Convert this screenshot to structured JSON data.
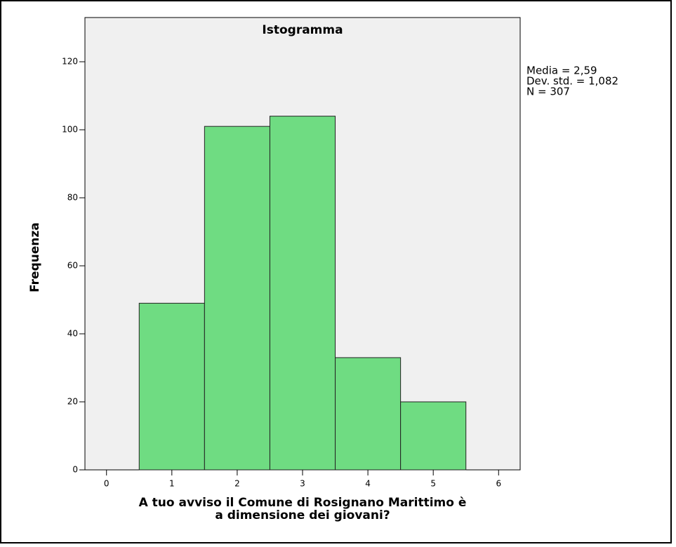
{
  "chart_data": {
    "type": "histogram",
    "title": "Istogramma",
    "xlabel": [
      "A tuo avviso il Comune di Rosignano Marittimo è",
      "a dimensione dei giovani?"
    ],
    "ylabel": "Frequenza",
    "bins": [
      0.5,
      1.5,
      2.5,
      3.5,
      4.5,
      5.5
    ],
    "counts": [
      49,
      101,
      104,
      33,
      20
    ],
    "color": "#6fdc82",
    "xlim": [
      -0.33,
      6.33
    ],
    "xticks": [
      0,
      1,
      2,
      3,
      4,
      5,
      6
    ],
    "ylim": [
      0,
      133
    ],
    "yticks": [
      0,
      20,
      40,
      60,
      80,
      100,
      120
    ],
    "annotations": [
      "Media = 2,59",
      "Dev. std. = 1,082",
      "N = 307"
    ]
  }
}
